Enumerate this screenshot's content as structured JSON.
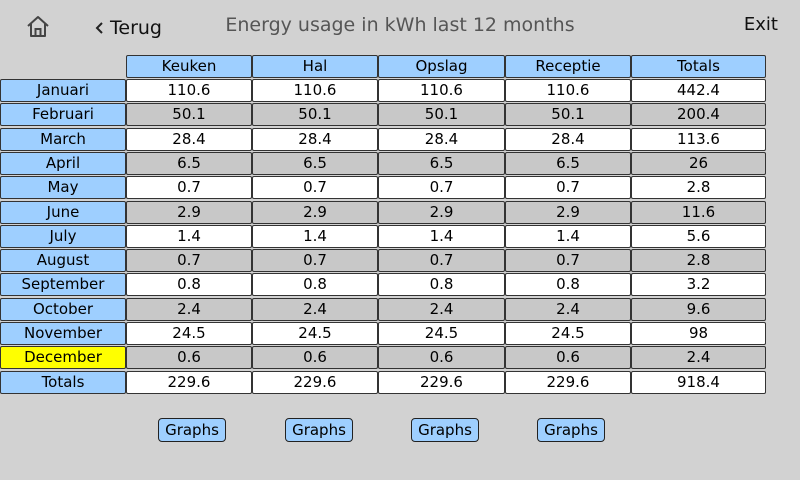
{
  "header": {
    "back_label": "Terug",
    "title": "Energy usage in kWh last 12 months",
    "exit_label": "Exit"
  },
  "table": {
    "columns": [
      "Keuken",
      "Hal",
      "Opslag",
      "Receptie",
      "Totals"
    ],
    "rows": [
      {
        "month": "Januari",
        "values": [
          "110.6",
          "110.6",
          "110.6",
          "110.6",
          "442.4"
        ]
      },
      {
        "month": "Februari",
        "values": [
          "50.1",
          "50.1",
          "50.1",
          "50.1",
          "200.4"
        ]
      },
      {
        "month": "March",
        "values": [
          "28.4",
          "28.4",
          "28.4",
          "28.4",
          "113.6"
        ]
      },
      {
        "month": "April",
        "values": [
          "6.5",
          "6.5",
          "6.5",
          "6.5",
          "26"
        ]
      },
      {
        "month": "May",
        "values": [
          "0.7",
          "0.7",
          "0.7",
          "0.7",
          "2.8"
        ]
      },
      {
        "month": "June",
        "values": [
          "2.9",
          "2.9",
          "2.9",
          "2.9",
          "11.6"
        ]
      },
      {
        "month": "July",
        "values": [
          "1.4",
          "1.4",
          "1.4",
          "1.4",
          "5.6"
        ]
      },
      {
        "month": "August",
        "values": [
          "0.7",
          "0.7",
          "0.7",
          "0.7",
          "2.8"
        ]
      },
      {
        "month": "September",
        "values": [
          "0.8",
          "0.8",
          "0.8",
          "0.8",
          "3.2"
        ]
      },
      {
        "month": "October",
        "values": [
          "2.4",
          "2.4",
          "2.4",
          "2.4",
          "9.6"
        ]
      },
      {
        "month": "November",
        "values": [
          "24.5",
          "24.5",
          "24.5",
          "24.5",
          "98"
        ]
      },
      {
        "month": "December",
        "values": [
          "0.6",
          "0.6",
          "0.6",
          "0.6",
          "2.4"
        ],
        "current": true
      },
      {
        "month": "Totals",
        "values": [
          "229.6",
          "229.6",
          "229.6",
          "229.6",
          "918.4"
        ]
      }
    ]
  },
  "graph_buttons": [
    "Graphs",
    "Graphs",
    "Graphs",
    "Graphs"
  ],
  "icons": {
    "home": "home-icon",
    "back": "chevron-left-icon"
  },
  "colors": {
    "header_cell": "#9ecfff",
    "current_month": "#ffff00",
    "row_alt": "#c8c8c8",
    "row": "#ffffff",
    "background": "#d2d2d2"
  }
}
